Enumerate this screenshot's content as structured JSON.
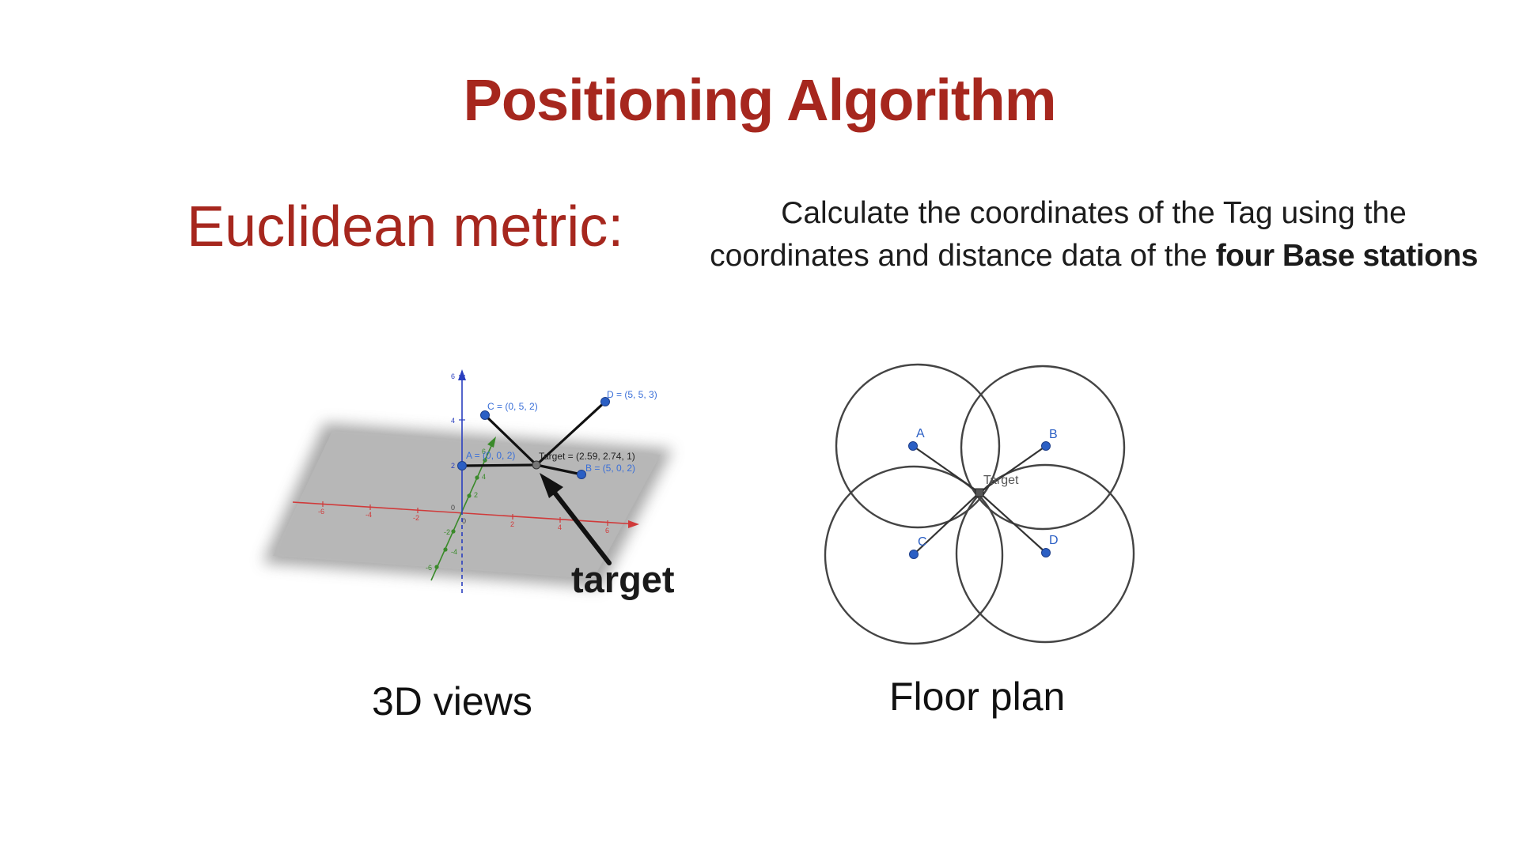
{
  "slide": {
    "title": "Positioning Algorithm",
    "metric_label": "Euclidean metric:",
    "description_line1": "Calculate the coordinates of the Tag using the",
    "description_line2": "coordinates and distance data of the ",
    "description_bold": "four Base stations"
  },
  "view3d": {
    "caption": "3D views",
    "callout": "target",
    "points": {
      "A": "A = (0, 0, 2)",
      "B": "B = (5, 0, 2)",
      "C": "C = (0, 5, 2)",
      "D": "D = (5, 5, 3)",
      "target": "Target = (2.59, 2.74, 1)"
    },
    "x_ticks": [
      "-6",
      "-4",
      "-2",
      "0",
      "2",
      "4",
      "6"
    ],
    "y_ticks": [
      "-6",
      "-4",
      "-2",
      "2",
      "4",
      "6"
    ],
    "z_ticks": [
      "6",
      "4",
      "2",
      "0"
    ],
    "colors": {
      "x_axis": "#d03a3a",
      "y_axis": "#3a8a2a",
      "z_axis": "#2a3fbf",
      "point": "#2b5fc4"
    }
  },
  "floorplan": {
    "caption": "Floor plan",
    "station_labels": [
      "A",
      "B",
      "C",
      "D"
    ],
    "target_label": "Target"
  }
}
